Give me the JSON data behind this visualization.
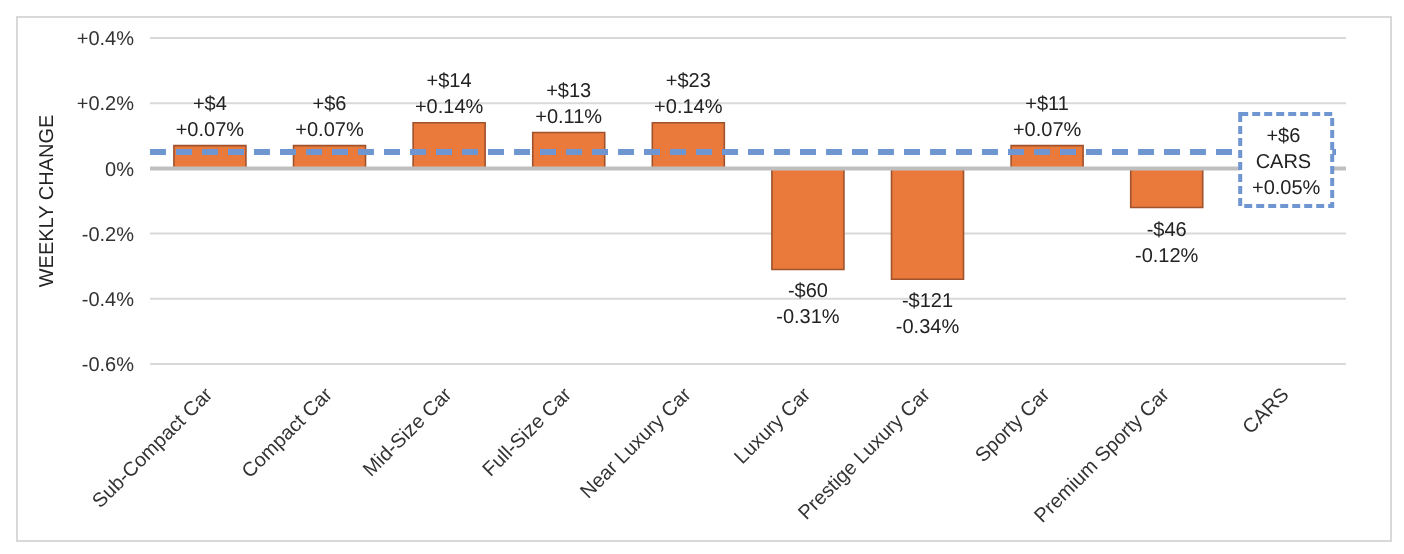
{
  "chart_data": {
    "type": "bar",
    "ylabel": "WEEKLY CHANGE",
    "categories": [
      "Sub-Compact Car",
      "Compact Car",
      "Mid-Size Car",
      "Full-Size Car",
      "Near Luxury Car",
      "Luxury Car",
      "Prestige Luxury Car",
      "Sporty Car",
      "Premium Sporty Car",
      "CARS"
    ],
    "values": [
      0.07,
      0.07,
      0.14,
      0.11,
      0.14,
      -0.31,
      -0.34,
      0.07,
      -0.12,
      null
    ],
    "value_labels": [
      "+$4\n+0.07%",
      "+$6\n+0.07%",
      "+$14\n+0.14%",
      "+$13\n+0.11%",
      "+$23\n+0.14%",
      "-$60\n-0.31%",
      "-$121\n-0.34%",
      "+$11\n+0.07%",
      "-$46\n-0.12%",
      null
    ],
    "color": "#e97a3c",
    "ylim": [
      -0.6,
      0.4
    ],
    "yticks": [
      {
        "value": 0.4,
        "label": "+0.4%"
      },
      {
        "value": 0.2,
        "label": "+0.2%"
      },
      {
        "value": 0,
        "label": "0%"
      },
      {
        "value": -0.2,
        "label": "-0.2%"
      },
      {
        "value": -0.4,
        "label": "-0.4%"
      },
      {
        "value": -0.6,
        "label": "-0.6%"
      }
    ],
    "grid": "y",
    "ref_lines": [
      {
        "axis": "y",
        "value": 0.05,
        "color": "#6f96d0",
        "line_style": "dashed"
      }
    ],
    "annotations": [
      {
        "text": "+$6 CARS +0.05%",
        "x": "CARS",
        "y": 0.05
      }
    ]
  }
}
